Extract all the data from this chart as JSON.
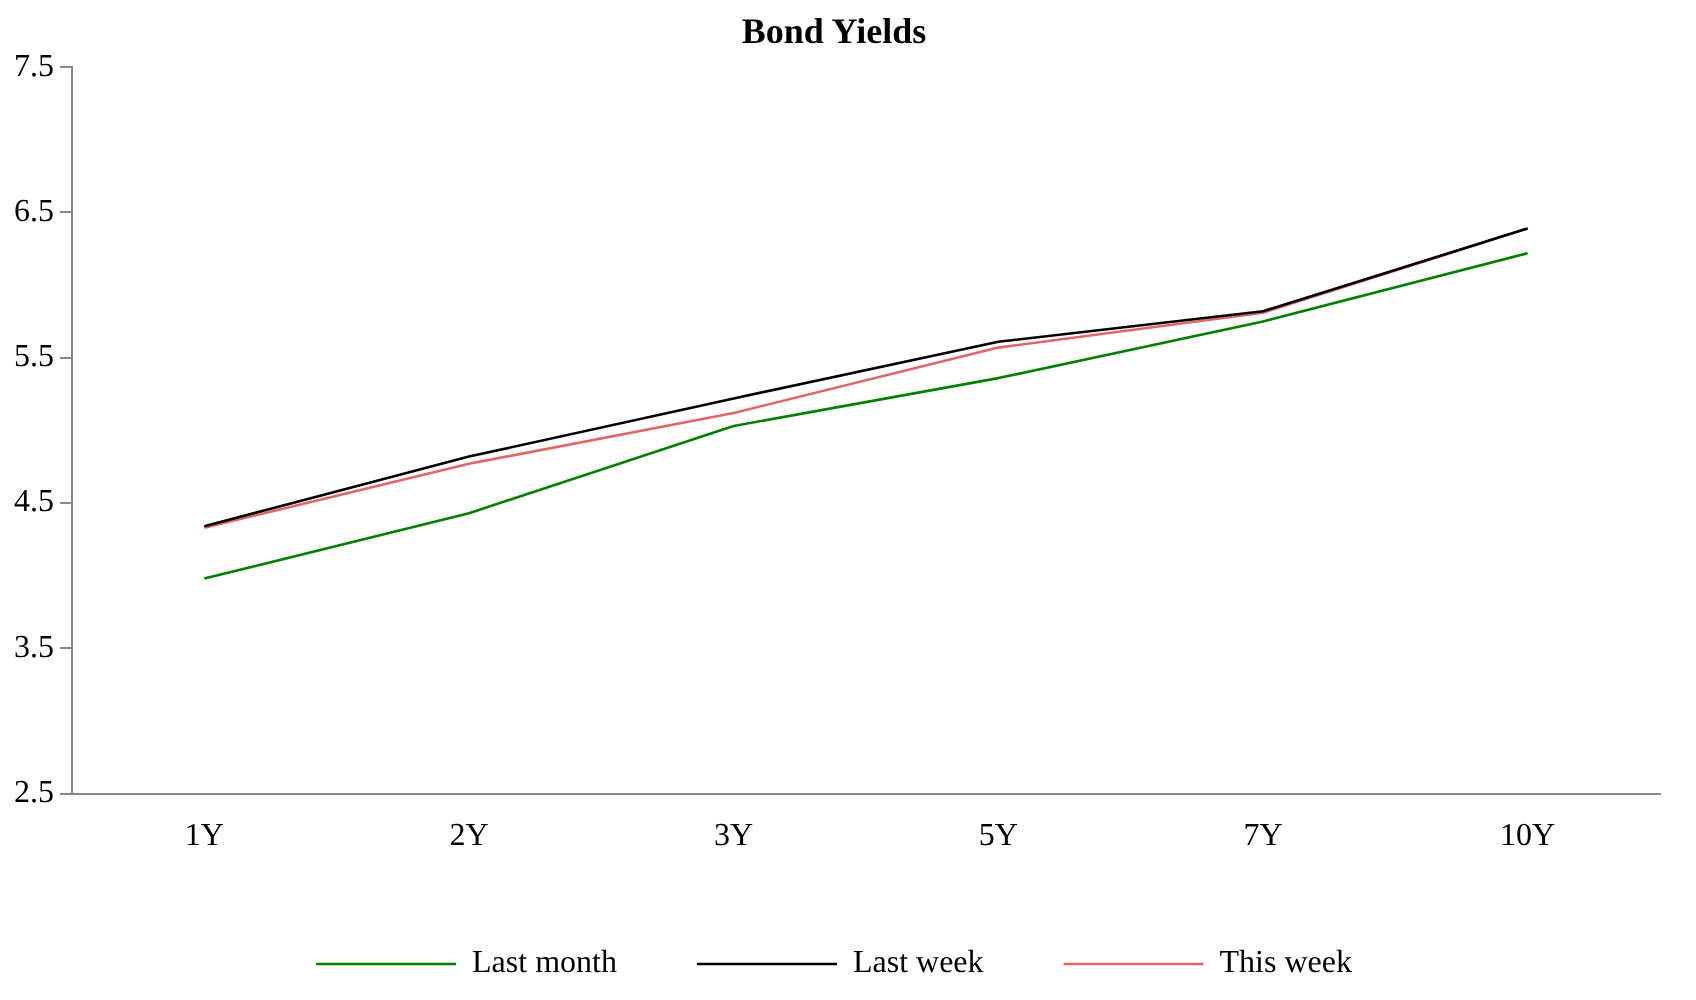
{
  "chart_data": {
    "type": "line",
    "title": "Bond Yields",
    "categories": [
      "1Y",
      "2Y",
      "3Y",
      "5Y",
      "7Y",
      "10Y"
    ],
    "series": [
      {
        "name": "Last month",
        "color": "#008000",
        "values": [
          3.98,
          4.43,
          5.03,
          5.36,
          5.75,
          6.22
        ]
      },
      {
        "name": "Last week",
        "color": "#000000",
        "values": [
          4.34,
          4.82,
          5.22,
          5.61,
          5.82,
          6.39
        ]
      },
      {
        "name": "This week",
        "color": "#e06666",
        "values": [
          4.33,
          4.77,
          5.12,
          5.57,
          5.81,
          6.39
        ]
      }
    ],
    "ylim": [
      2.5,
      7.5
    ],
    "yticks": [
      2.5,
      3.5,
      4.5,
      5.5,
      6.5,
      7.5
    ],
    "legend": "bottom",
    "marker": "none",
    "line_style": "solid"
  }
}
